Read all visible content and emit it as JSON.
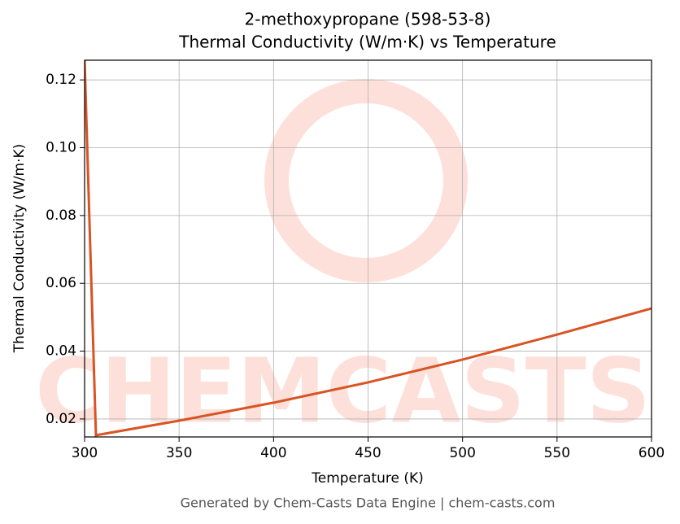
{
  "chart_data": {
    "type": "line",
    "title": "2-methoxypropane (598-53-8)",
    "subtitle": "Thermal Conductivity (W/m·K) vs Temperature",
    "x_label": "Temperature (K)",
    "y_label": "Thermal Conductivity (W/m·K)",
    "watermark": "CHEMCASTS",
    "footer": "Generated by Chem-Casts Data Engine | chem-casts.com",
    "x": [
      300,
      306,
      350,
      400,
      450,
      500,
      550,
      600
    ],
    "series": [
      {
        "name": "Thermal Conductivity",
        "color": "#d95323",
        "values": [
          0.1258,
          0.0152,
          0.0195,
          0.0248,
          0.0308,
          0.0375,
          0.0449,
          0.0526
        ]
      }
    ],
    "xlim": [
      300,
      600
    ],
    "ylim": [
      0.0147,
      0.1258
    ],
    "xticks": [
      300,
      350,
      400,
      450,
      500,
      550,
      600
    ],
    "yticks": [
      {
        "value": 0.02,
        "label": "0.02"
      },
      {
        "value": 0.04,
        "label": "0.04"
      },
      {
        "value": 0.06,
        "label": "0.06"
      },
      {
        "value": 0.08,
        "label": "0.08"
      },
      {
        "value": 0.1,
        "label": "0.10"
      },
      {
        "value": 0.12,
        "label": "0.12"
      }
    ],
    "grid": true
  }
}
